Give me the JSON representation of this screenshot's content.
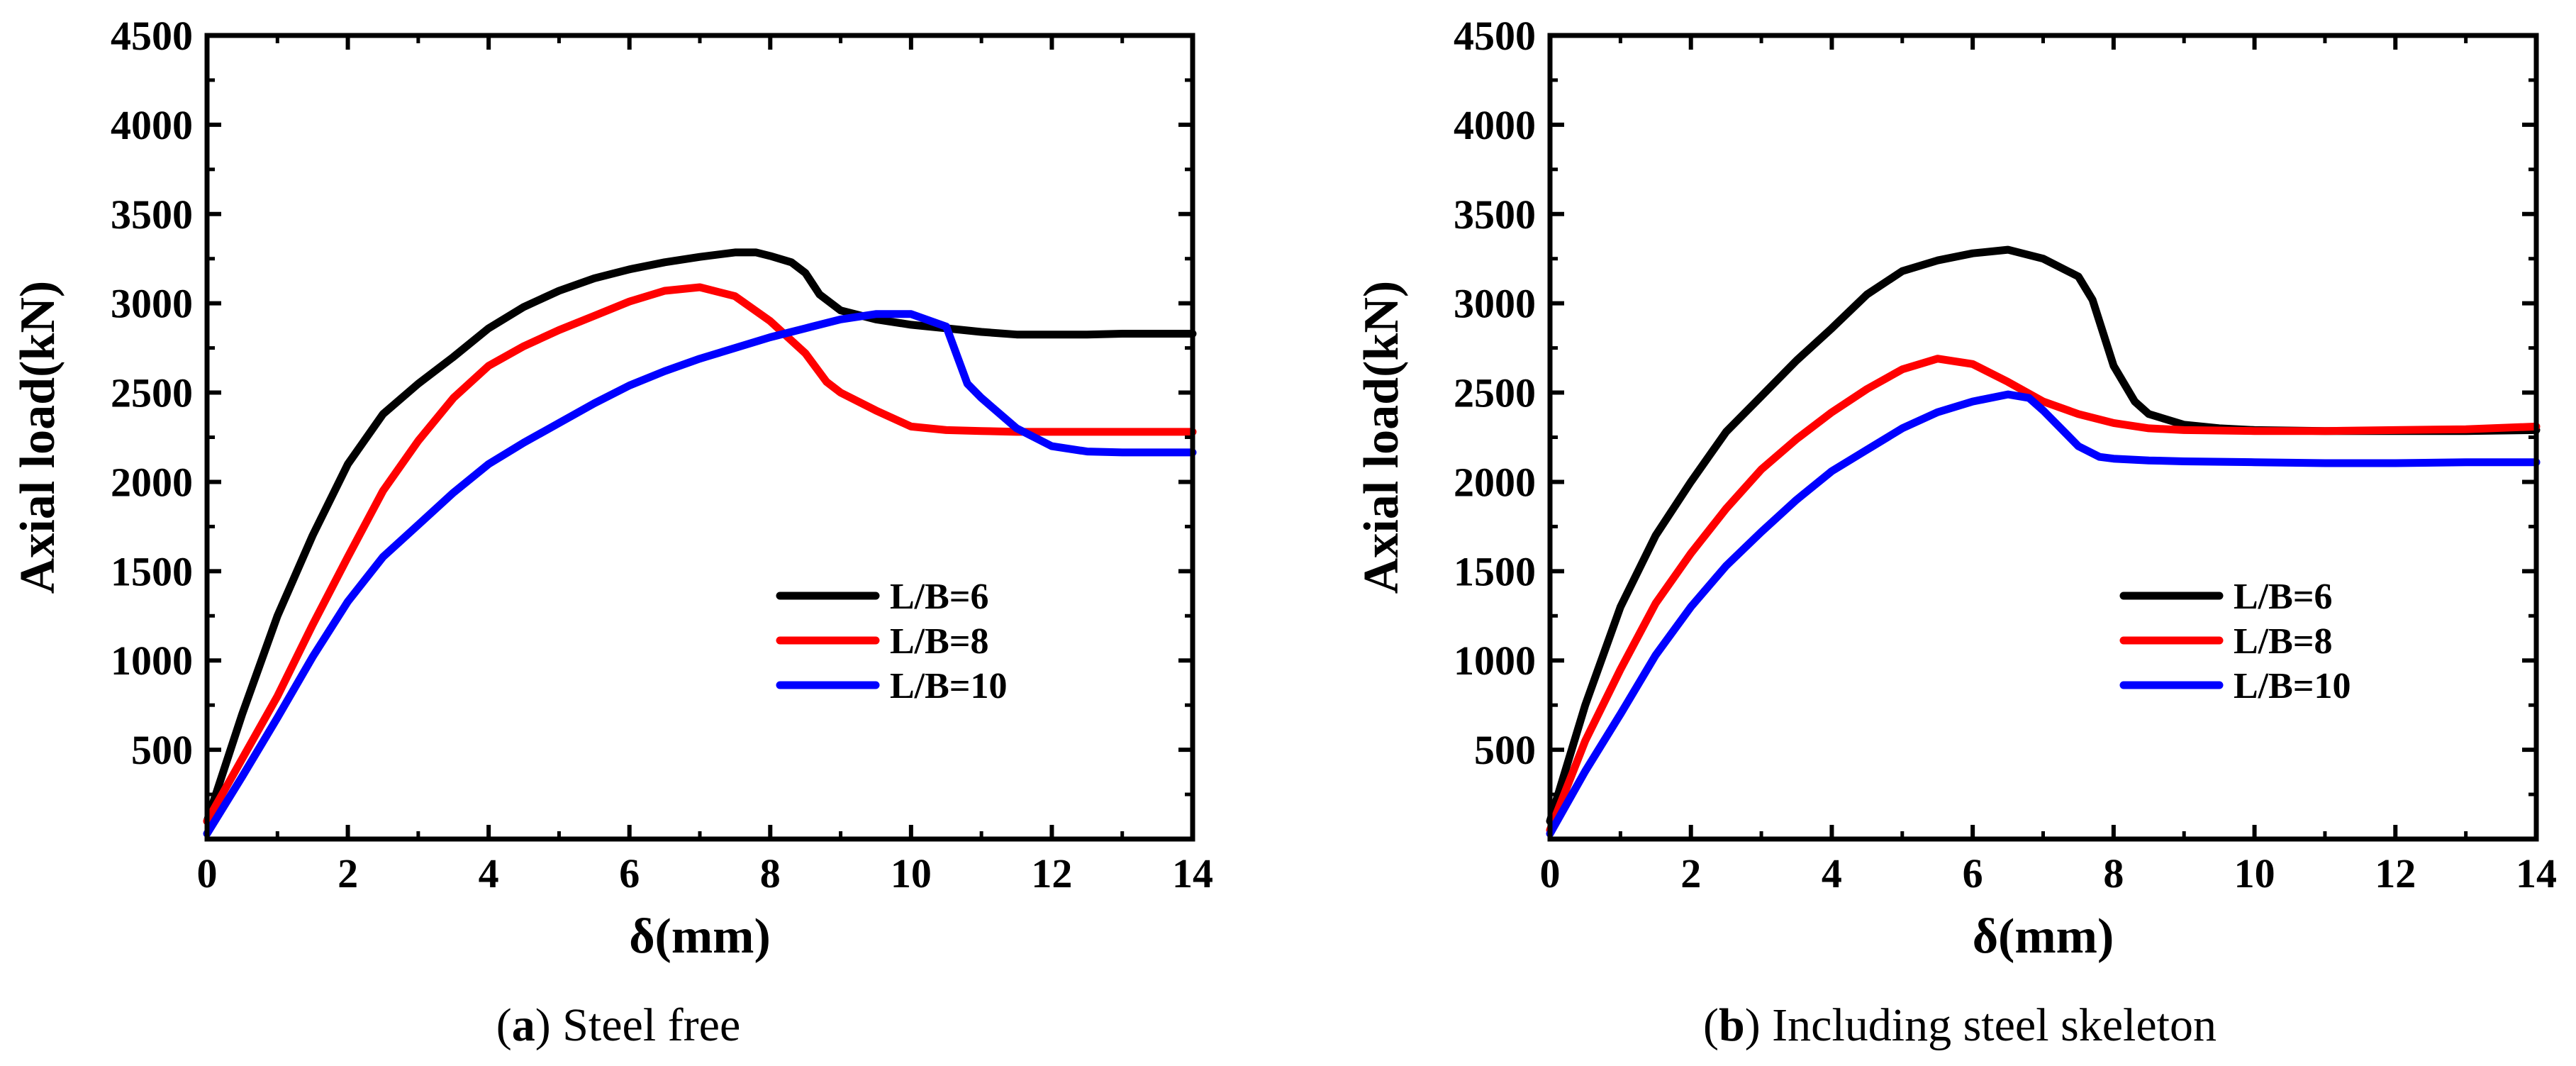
{
  "chart_data": [
    {
      "type": "line",
      "caption_letter": "a",
      "caption_text": "Steel free",
      "xlabel": "δ(mm)",
      "ylabel": "Axial load(kN)",
      "xlim": [
        0,
        14
      ],
      "ylim": [
        0,
        4500
      ],
      "xticks": [
        "0",
        "2",
        "4",
        "6",
        "8",
        "10",
        "12",
        "14"
      ],
      "yticks": [
        "500",
        "1000",
        "1500",
        "2000",
        "2500",
        "3000",
        "3500",
        "4000",
        "4500"
      ],
      "legend_position": "center-right",
      "series": [
        {
          "name": "L/B=6",
          "color": "#000000",
          "points": [
            [
              0,
              100
            ],
            [
              0.5,
              700
            ],
            [
              1,
              1250
            ],
            [
              1.5,
              1700
            ],
            [
              2,
              2100
            ],
            [
              2.5,
              2380
            ],
            [
              3,
              2550
            ],
            [
              3.5,
              2700
            ],
            [
              4,
              2860
            ],
            [
              4.5,
              2980
            ],
            [
              5,
              3070
            ],
            [
              5.5,
              3140
            ],
            [
              6,
              3190
            ],
            [
              6.5,
              3230
            ],
            [
              7,
              3260
            ],
            [
              7.5,
              3285
            ],
            [
              7.8,
              3285
            ],
            [
              8,
              3265
            ],
            [
              8.3,
              3230
            ],
            [
              8.5,
              3170
            ],
            [
              8.7,
              3050
            ],
            [
              9,
              2960
            ],
            [
              9.5,
              2910
            ],
            [
              10,
              2880
            ],
            [
              10.5,
              2860
            ],
            [
              11,
              2840
            ],
            [
              11.5,
              2825
            ],
            [
              12,
              2825
            ],
            [
              12.5,
              2825
            ],
            [
              13,
              2830
            ],
            [
              14,
              2830
            ]
          ]
        },
        {
          "name": "L/B=8",
          "color": "#ff0000",
          "points": [
            [
              0,
              100
            ],
            [
              0.5,
              450
            ],
            [
              1,
              800
            ],
            [
              1.5,
              1200
            ],
            [
              2,
              1580
            ],
            [
              2.5,
              1950
            ],
            [
              3,
              2230
            ],
            [
              3.5,
              2470
            ],
            [
              4,
              2650
            ],
            [
              4.5,
              2760
            ],
            [
              5,
              2850
            ],
            [
              5.5,
              2930
            ],
            [
              6,
              3010
            ],
            [
              6.5,
              3070
            ],
            [
              7,
              3090
            ],
            [
              7.5,
              3040
            ],
            [
              8,
              2900
            ],
            [
              8.5,
              2720
            ],
            [
              8.8,
              2560
            ],
            [
              9,
              2500
            ],
            [
              9.5,
              2400
            ],
            [
              10,
              2310
            ],
            [
              10.5,
              2290
            ],
            [
              11,
              2285
            ],
            [
              11.5,
              2280
            ],
            [
              12,
              2280
            ],
            [
              12.5,
              2280
            ],
            [
              13,
              2280
            ],
            [
              14,
              2280
            ]
          ]
        },
        {
          "name": "L/B=10",
          "color": "#0000ff",
          "points": [
            [
              0,
              30
            ],
            [
              0.5,
              350
            ],
            [
              1,
              680
            ],
            [
              1.5,
              1020
            ],
            [
              2,
              1330
            ],
            [
              2.5,
              1580
            ],
            [
              3,
              1760
            ],
            [
              3.5,
              1940
            ],
            [
              4,
              2100
            ],
            [
              4.5,
              2220
            ],
            [
              5,
              2330
            ],
            [
              5.5,
              2440
            ],
            [
              6,
              2540
            ],
            [
              6.5,
              2620
            ],
            [
              7,
              2690
            ],
            [
              7.5,
              2750
            ],
            [
              8,
              2810
            ],
            [
              8.5,
              2860
            ],
            [
              9,
              2910
            ],
            [
              9.5,
              2940
            ],
            [
              10,
              2940
            ],
            [
              10.5,
              2870
            ],
            [
              10.8,
              2550
            ],
            [
              11,
              2470
            ],
            [
              11.5,
              2300
            ],
            [
              12,
              2200
            ],
            [
              12.5,
              2170
            ],
            [
              13,
              2165
            ],
            [
              14,
              2165
            ]
          ]
        }
      ]
    },
    {
      "type": "line",
      "caption_letter": "b",
      "caption_text": "Including steel skeleton",
      "xlabel": "δ(mm)",
      "ylabel": "Axial load(kN)",
      "xlim": [
        0,
        14
      ],
      "ylim": [
        0,
        4500
      ],
      "xticks": [
        "0",
        "2",
        "4",
        "6",
        "8",
        "10",
        "12",
        "14"
      ],
      "yticks": [
        "500",
        "1000",
        "1500",
        "2000",
        "2500",
        "3000",
        "3500",
        "4000",
        "4500"
      ],
      "legend_position": "center-right",
      "series": [
        {
          "name": "L/B=6",
          "color": "#000000",
          "points": [
            [
              0,
              100
            ],
            [
              0.5,
              750
            ],
            [
              1,
              1300
            ],
            [
              1.5,
              1700
            ],
            [
              2,
              2000
            ],
            [
              2.5,
              2280
            ],
            [
              3,
              2480
            ],
            [
              3.5,
              2680
            ],
            [
              4,
              2860
            ],
            [
              4.5,
              3050
            ],
            [
              5,
              3180
            ],
            [
              5.5,
              3240
            ],
            [
              6,
              3280
            ],
            [
              6.5,
              3300
            ],
            [
              7,
              3250
            ],
            [
              7.5,
              3150
            ],
            [
              7.7,
              3020
            ],
            [
              8,
              2650
            ],
            [
              8.3,
              2450
            ],
            [
              8.5,
              2380
            ],
            [
              9,
              2320
            ],
            [
              9.5,
              2300
            ],
            [
              10,
              2290
            ],
            [
              11,
              2285
            ],
            [
              12,
              2285
            ],
            [
              13,
              2285
            ],
            [
              14,
              2290
            ]
          ]
        },
        {
          "name": "L/B=8",
          "color": "#ff0000",
          "points": [
            [
              0,
              50
            ],
            [
              0.5,
              550
            ],
            [
              1,
              950
            ],
            [
              1.5,
              1320
            ],
            [
              2,
              1600
            ],
            [
              2.5,
              1850
            ],
            [
              3,
              2070
            ],
            [
              3.5,
              2240
            ],
            [
              4,
              2390
            ],
            [
              4.5,
              2520
            ],
            [
              5,
              2630
            ],
            [
              5.5,
              2690
            ],
            [
              6,
              2660
            ],
            [
              6.5,
              2560
            ],
            [
              7,
              2450
            ],
            [
              7.5,
              2380
            ],
            [
              8,
              2330
            ],
            [
              8.5,
              2300
            ],
            [
              9,
              2290
            ],
            [
              10,
              2285
            ],
            [
              11,
              2285
            ],
            [
              12,
              2290
            ],
            [
              13,
              2295
            ],
            [
              14,
              2310
            ]
          ]
        },
        {
          "name": "L/B=10",
          "color": "#0000ff",
          "points": [
            [
              0,
              30
            ],
            [
              0.5,
              380
            ],
            [
              1,
              700
            ],
            [
              1.5,
              1030
            ],
            [
              2,
              1300
            ],
            [
              2.5,
              1530
            ],
            [
              3,
              1720
            ],
            [
              3.5,
              1900
            ],
            [
              4,
              2060
            ],
            [
              4.5,
              2180
            ],
            [
              5,
              2300
            ],
            [
              5.5,
              2390
            ],
            [
              6,
              2450
            ],
            [
              6.5,
              2490
            ],
            [
              6.8,
              2470
            ],
            [
              7,
              2400
            ],
            [
              7.5,
              2200
            ],
            [
              7.8,
              2140
            ],
            [
              8,
              2130
            ],
            [
              8.5,
              2120
            ],
            [
              9,
              2115
            ],
            [
              10,
              2110
            ],
            [
              11,
              2105
            ],
            [
              12,
              2105
            ],
            [
              13,
              2110
            ],
            [
              14,
              2110
            ]
          ]
        }
      ]
    }
  ]
}
